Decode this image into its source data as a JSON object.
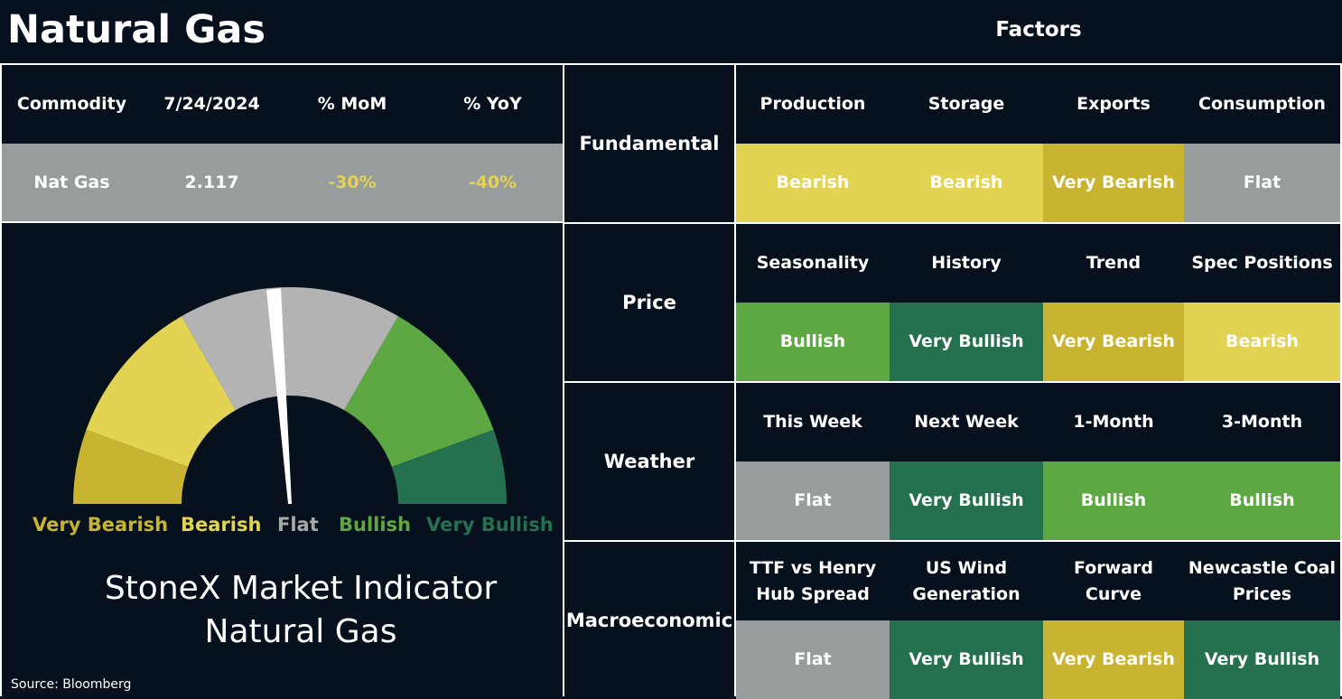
{
  "title": "Natural Gas",
  "factors_title": "Factors",
  "commodity_table": {
    "headers": [
      "Commodity",
      "7/24/2024",
      "% MoM",
      "% YoY"
    ],
    "row": [
      "Nat Gas",
      "2.117",
      "-30%",
      "-40%"
    ]
  },
  "gauge": {
    "labels": [
      "Very Bearish",
      "Bearish",
      "Flat",
      "Bullish",
      "Very Bullish"
    ],
    "colors": {
      "very_bearish": "#c8b430",
      "bearish": "#e2d452",
      "flat": "#b3b3b3",
      "bullish": "#5ea844",
      "very_bullish": "#24704f",
      "needle": "#ffffff"
    },
    "reading": "Flat"
  },
  "indicator": {
    "line1": "StoneX Market Indicator",
    "line2": "Natural Gas"
  },
  "source": "Source: Bloomberg",
  "factors": [
    {
      "name": "Fundamental",
      "items": [
        {
          "label": "Production",
          "value": "Bearish",
          "status": "bearish"
        },
        {
          "label": "Storage",
          "value": "Bearish",
          "status": "bearish"
        },
        {
          "label": "Exports",
          "value": "Very Bearish",
          "status": "vbearish"
        },
        {
          "label": "Consumption",
          "value": "Flat",
          "status": "flat"
        }
      ]
    },
    {
      "name": "Price",
      "items": [
        {
          "label": "Seasonality",
          "value": "Bullish",
          "status": "bullish"
        },
        {
          "label": "History",
          "value": "Very Bullish",
          "status": "vbullish"
        },
        {
          "label": "Trend",
          "value": "Very Bearish",
          "status": "vbearish"
        },
        {
          "label": "Spec Positions",
          "value": "Bearish",
          "status": "bearish"
        }
      ]
    },
    {
      "name": "Weather",
      "items": [
        {
          "label": "This Week",
          "value": "Flat",
          "status": "flat"
        },
        {
          "label": "Next Week",
          "value": "Very Bullish",
          "status": "vbullish"
        },
        {
          "label": "1-Month",
          "value": "Bullish",
          "status": "bullish"
        },
        {
          "label": "3-Month",
          "value": "Bullish",
          "status": "bullish"
        }
      ]
    },
    {
      "name": "Macroeconomic",
      "items": [
        {
          "label": "TTF vs Henry\nHub Spread",
          "value": "Flat",
          "status": "flat"
        },
        {
          "label": "US Wind\nGeneration",
          "value": "Very Bullish",
          "status": "vbullish"
        },
        {
          "label": "Forward\nCurve",
          "value": "Very Bearish",
          "status": "vbearish"
        },
        {
          "label": "Newcastle Coal\nPrices",
          "value": "Very Bullish",
          "status": "vbullish"
        }
      ]
    }
  ]
}
